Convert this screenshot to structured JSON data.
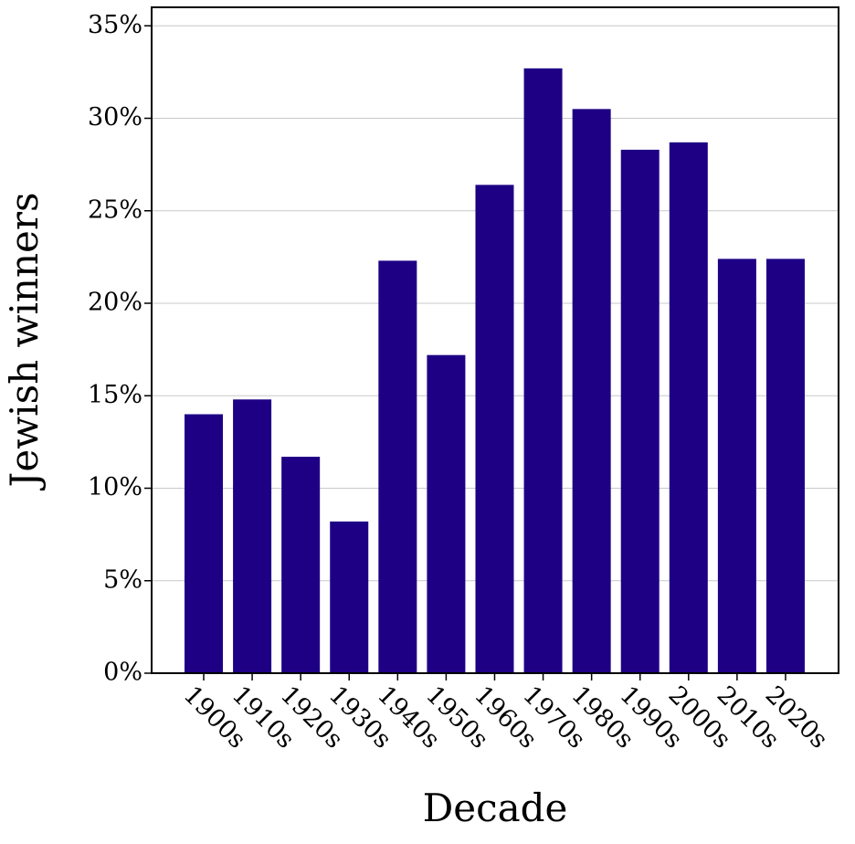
{
  "chart_data": {
    "type": "bar",
    "x_label": "Decade",
    "y_label": "Jewish winners",
    "categories": [
      "1900s",
      "1910s",
      "1920s",
      "1930s",
      "1940s",
      "1950s",
      "1960s",
      "1970s",
      "1980s",
      "1990s",
      "2000s",
      "2010s",
      "2020s"
    ],
    "values": [
      14.0,
      14.8,
      11.7,
      8.2,
      22.3,
      17.2,
      26.4,
      32.7,
      30.5,
      28.3,
      28.7,
      22.4,
      22.4
    ],
    "color": "#1e0085",
    "ylim": [
      0,
      36
    ],
    "yticks": [
      {
        "value": 0,
        "label": "0%"
      },
      {
        "value": 5,
        "label": "5%"
      },
      {
        "value": 10,
        "label": "10%"
      },
      {
        "value": 15,
        "label": "15%"
      },
      {
        "value": 20,
        "label": "20%"
      },
      {
        "value": 25,
        "label": "25%"
      },
      {
        "value": 30,
        "label": "30%"
      },
      {
        "value": 35,
        "label": "35%"
      }
    ],
    "grid": true
  }
}
